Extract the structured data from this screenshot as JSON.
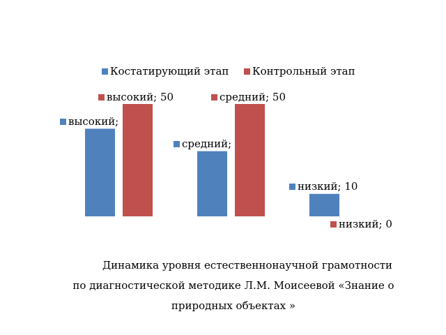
{
  "chart_data": {
    "type": "bar",
    "categories": [
      "высокий",
      "средний",
      "низкий"
    ],
    "series": [
      {
        "name": "Костатирующий этап",
        "color": "#4F81BD",
        "values": [
          39,
          29,
          10
        ]
      },
      {
        "name": "Контрольный этап",
        "color": "#C0504D",
        "values": [
          50,
          50,
          0
        ]
      }
    ],
    "ylim": [
      0,
      50
    ],
    "grid": false,
    "legend": "top",
    "data_label_separator": "; "
  },
  "caption": {
    "line1": "Динамика уровня естественнонаучной грамотности",
    "line2": "по диагностической методике Л.М. Моисеевой «Знание о",
    "line3": "природных объектах »"
  }
}
